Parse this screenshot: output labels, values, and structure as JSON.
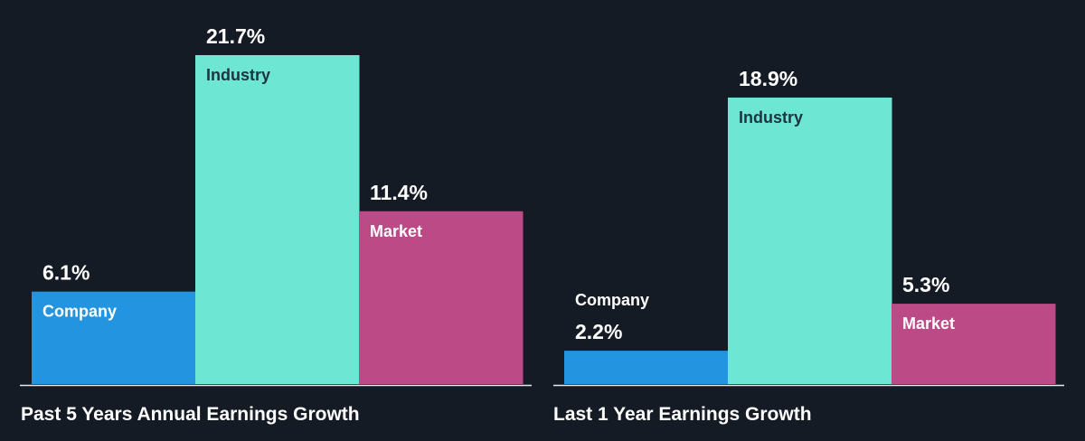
{
  "chart_data": [
    {
      "type": "bar",
      "title": "Past 5 Years Annual Earnings Growth",
      "categories": [
        "Company",
        "Industry",
        "Market"
      ],
      "values": [
        6.1,
        21.7,
        11.4
      ],
      "value_labels": [
        "6.1%",
        "21.7%",
        "11.4%"
      ],
      "colors": [
        "#2394e0",
        "#6ee6d4",
        "#bb4a86"
      ],
      "label_colors": [
        "#ffffff",
        "#1f3340",
        "#ffffff"
      ],
      "ylim": [
        0,
        21.7
      ]
    },
    {
      "type": "bar",
      "title": "Last 1 Year Earnings Growth",
      "categories": [
        "Company",
        "Industry",
        "Market"
      ],
      "values": [
        2.2,
        18.9,
        5.3
      ],
      "value_labels": [
        "2.2%",
        "18.9%",
        "5.3%"
      ],
      "colors": [
        "#2394e0",
        "#6ee6d4",
        "#bb4a86"
      ],
      "label_colors": [
        "#ffffff",
        "#1f3340",
        "#ffffff"
      ],
      "ylim": [
        0,
        21.7
      ]
    }
  ]
}
